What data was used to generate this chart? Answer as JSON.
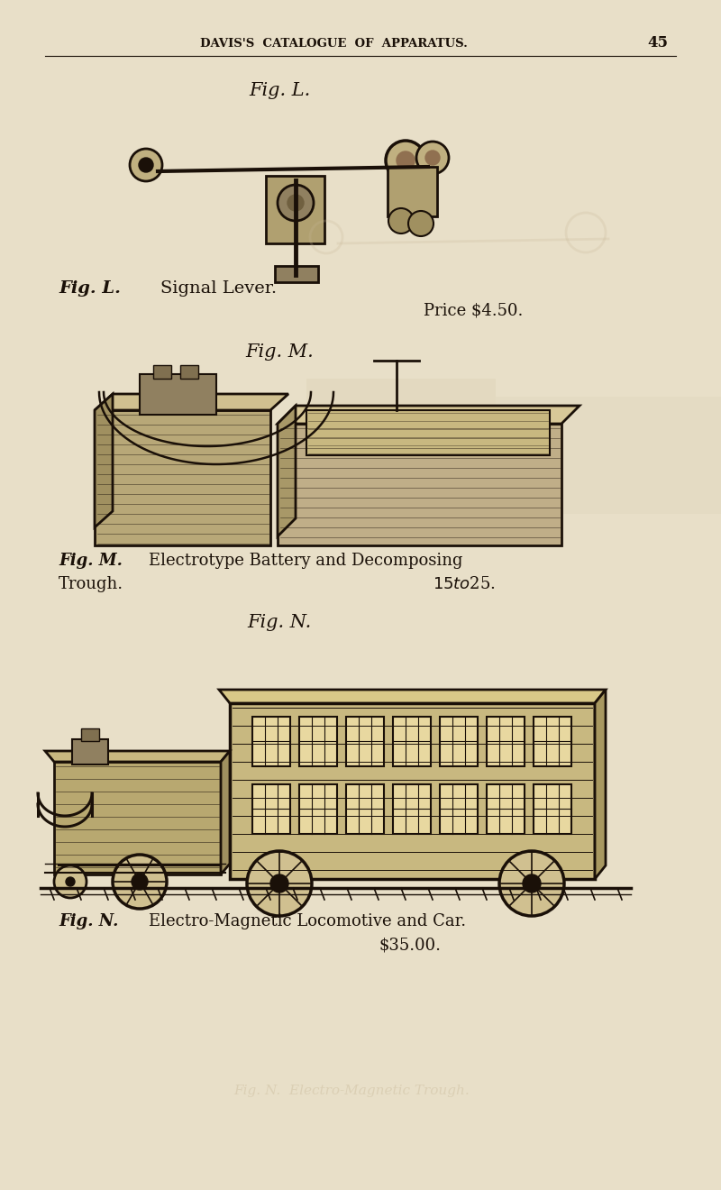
{
  "bg_color": "#e8dfc8",
  "header_text": "DAVIS'S  CATALOGUE  OF  APPARATUS.",
  "page_num": "45",
  "fig_L_title": "Fig. L.",
  "fig_L_label": "Fig. L.",
  "fig_L_desc": "Signal Lever.",
  "fig_L_price": "Price $4.50.",
  "fig_M_title": "Fig. M.",
  "fig_M_label": "Fig. M.",
  "fig_M_desc": "Electrotype Battery and Decomposing",
  "fig_M_desc2": "Trough.",
  "fig_M_price": "$15 to $25.",
  "fig_N_title": "Fig. N.",
  "fig_N_label": "Fig. N.",
  "fig_N_desc": "Electro-Magnetic Locomotive and Car.",
  "fig_N_price": "$35.00.",
  "text_color": "#1a1008",
  "light_text_color": "#c8b898"
}
